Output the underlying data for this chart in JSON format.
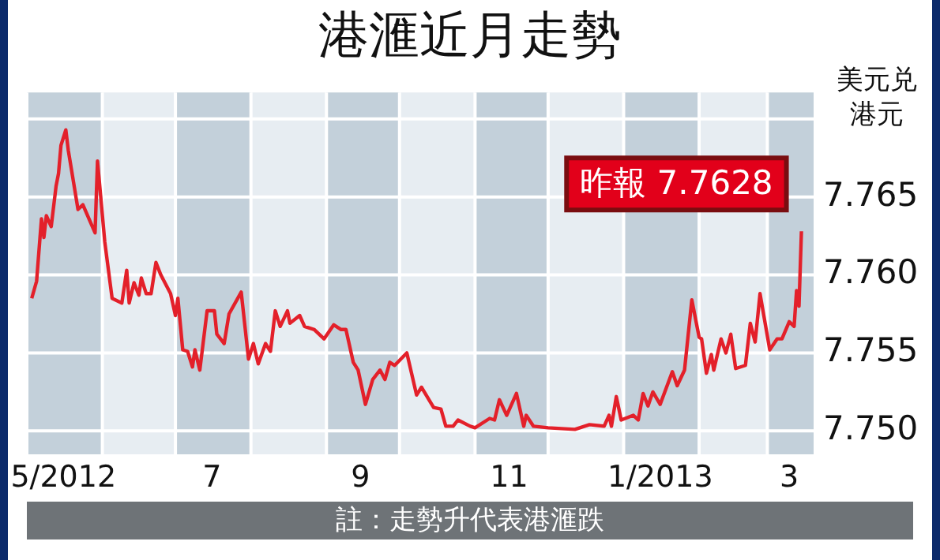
{
  "chart_data": {
    "type": "line",
    "title": "港滙近月走勢",
    "ylabel": "美元兑港元",
    "annotations": [
      {
        "text": "昨報 7.7628",
        "x": "2013-03-15",
        "y": 7.7628
      },
      "註：走勢升代表港滙跌"
    ],
    "xlim": [
      "2012-05-01",
      "2013-03-20"
    ],
    "xticks": [
      {
        "value": "2012-05-16",
        "label": "5/2012"
      },
      {
        "value": "2012-07-16",
        "label": "7"
      },
      {
        "value": "2012-09-15",
        "label": "9"
      },
      {
        "value": "2012-11-15",
        "label": "11"
      },
      {
        "value": "2013-01-16",
        "label": "1/2013"
      },
      {
        "value": "2013-03-10",
        "label": "3"
      }
    ],
    "ylim": [
      7.7485,
      7.7717
    ],
    "yticks": [
      {
        "value": 7.75,
        "label": "7.750"
      },
      7.755,
      {
        "value": 7.76,
        "label": "7.760"
      },
      7.765,
      {
        "value": 7.77,
        "label": null
      }
    ],
    "grid": "y",
    "legend": false,
    "marker": "none",
    "line_style": "solid",
    "bands": [
      {
        "axis": "x",
        "from": "2012-05-01",
        "to": "2012-06-01",
        "color": "#c3d0da"
      },
      {
        "axis": "x",
        "from": "2012-06-01",
        "to": "2012-07-01",
        "color": "#e7edf2"
      },
      {
        "axis": "x",
        "from": "2012-07-01",
        "to": "2012-08-01",
        "color": "#c3d0da"
      },
      {
        "axis": "x",
        "from": "2012-08-01",
        "to": "2012-09-01",
        "color": "#e7edf2"
      },
      {
        "axis": "x",
        "from": "2012-09-01",
        "to": "2012-10-01",
        "color": "#c3d0da"
      },
      {
        "axis": "x",
        "from": "2012-10-01",
        "to": "2012-11-01",
        "color": "#e7edf2"
      },
      {
        "axis": "x",
        "from": "2012-11-01",
        "to": "2012-12-01",
        "color": "#c3d0da"
      },
      {
        "axis": "x",
        "from": "2012-12-01",
        "to": "2013-01-01",
        "color": "#e7edf2"
      },
      {
        "axis": "x",
        "from": "2013-01-01",
        "to": "2013-02-01",
        "color": "#c3d0da"
      },
      {
        "axis": "x",
        "from": "2013-02-01",
        "to": "2013-03-01",
        "color": "#e7edf2"
      },
      {
        "axis": "x",
        "from": "2013-03-01",
        "to": "2013-03-20",
        "color": "#c3d0da"
      }
    ],
    "series": [
      {
        "color": "#e3202a",
        "x": [
          "2012-05-03",
          "2012-05-05",
          "2012-05-07",
          "2012-05-08",
          "2012-05-09",
          "2012-05-11",
          "2012-05-13",
          "2012-05-14",
          "2012-05-15",
          "2012-05-17",
          "2012-05-18",
          "2012-05-22",
          "2012-05-24",
          "2012-05-29",
          "2012-05-30",
          "2012-06-02",
          "2012-06-05",
          "2012-06-09",
          "2012-06-11",
          "2012-06-12",
          "2012-06-14",
          "2012-06-16",
          "2012-06-17",
          "2012-06-19",
          "2012-06-21",
          "2012-06-23",
          "2012-06-25",
          "2012-06-29",
          "2012-07-01",
          "2012-07-02",
          "2012-07-04",
          "2012-07-06",
          "2012-07-08",
          "2012-07-09",
          "2012-07-11",
          "2012-07-14",
          "2012-07-17",
          "2012-07-18",
          "2012-07-21",
          "2012-07-23",
          "2012-07-28",
          "2012-07-31",
          "2012-08-02",
          "2012-08-04",
          "2012-08-07",
          "2012-08-09",
          "2012-08-11",
          "2012-08-13",
          "2012-08-16",
          "2012-08-17",
          "2012-08-21",
          "2012-08-23",
          "2012-08-27",
          "2012-08-31",
          "2012-09-04",
          "2012-09-07",
          "2012-09-09",
          "2012-09-12",
          "2012-09-14",
          "2012-09-17",
          "2012-09-20",
          "2012-09-23",
          "2012-09-25",
          "2012-09-27",
          "2012-09-29",
          "2012-10-04",
          "2012-10-08",
          "2012-10-10",
          "2012-10-15",
          "2012-10-18",
          "2012-10-20",
          "2012-10-23",
          "2012-10-25",
          "2012-10-30",
          "2012-11-01",
          "2012-11-07",
          "2012-11-09",
          "2012-11-11",
          "2012-11-14",
          "2012-11-18",
          "2012-11-21",
          "2012-11-22",
          "2012-11-25",
          "2012-12-01",
          "2012-12-12",
          "2012-12-18",
          "2012-12-24",
          "2012-12-26",
          "2012-12-27",
          "2012-12-29",
          "2012-12-31",
          "2013-01-05",
          "2013-01-07",
          "2013-01-09",
          "2013-01-11",
          "2013-01-13",
          "2013-01-16",
          "2013-01-21",
          "2013-01-23",
          "2013-01-26",
          "2013-01-29",
          "2013-02-01",
          "2013-02-02",
          "2013-02-04",
          "2013-02-06",
          "2013-02-07",
          "2013-02-10",
          "2013-02-12",
          "2013-02-14",
          "2013-02-16",
          "2013-02-20",
          "2013-02-22",
          "2013-02-24",
          "2013-02-26",
          "2013-03-02",
          "2013-03-05",
          "2013-03-07",
          "2013-03-10",
          "2013-03-12",
          "2013-03-13",
          "2013-03-14",
          "2013-03-15"
        ],
        "values": [
          7.7585,
          7.7596,
          7.7636,
          7.7624,
          7.7638,
          7.7631,
          7.7657,
          7.7665,
          7.7683,
          7.7693,
          7.768,
          7.7642,
          7.7645,
          7.7627,
          7.7673,
          7.7621,
          7.7585,
          7.7582,
          7.7603,
          7.7582,
          7.7595,
          7.7587,
          7.7598,
          7.7588,
          7.7588,
          7.7608,
          7.76,
          7.7588,
          7.7574,
          7.7585,
          7.7552,
          7.7551,
          7.7541,
          7.7552,
          7.7539,
          7.7577,
          7.7577,
          7.7562,
          7.7556,
          7.7575,
          7.7589,
          7.7546,
          7.7556,
          7.7543,
          7.7556,
          7.7551,
          7.7577,
          7.7567,
          7.7577,
          7.7569,
          7.7574,
          7.7567,
          7.7565,
          7.7559,
          7.7568,
          7.7565,
          7.7565,
          7.7544,
          7.7539,
          7.7517,
          7.7533,
          7.7539,
          7.7533,
          7.7544,
          7.7542,
          7.755,
          7.7523,
          7.7528,
          7.7515,
          7.7514,
          7.7503,
          7.7503,
          7.7507,
          7.7503,
          7.7502,
          7.7508,
          7.7507,
          7.752,
          7.751,
          7.7524,
          7.7503,
          7.751,
          7.7503,
          7.7502,
          7.7501,
          7.7504,
          7.7503,
          7.751,
          7.7503,
          7.7522,
          7.7507,
          7.751,
          7.7507,
          7.7524,
          7.7516,
          7.7525,
          7.7517,
          7.7538,
          7.7529,
          7.7539,
          7.7584,
          7.756,
          7.7559,
          7.7537,
          7.7549,
          7.7539,
          7.7559,
          7.755,
          7.7562,
          7.754,
          7.7542,
          7.7569,
          7.7557,
          7.7588,
          7.7552,
          7.7559,
          7.7559,
          7.757,
          7.7567,
          7.759,
          7.758,
          7.7628
        ]
      }
    ]
  }
}
